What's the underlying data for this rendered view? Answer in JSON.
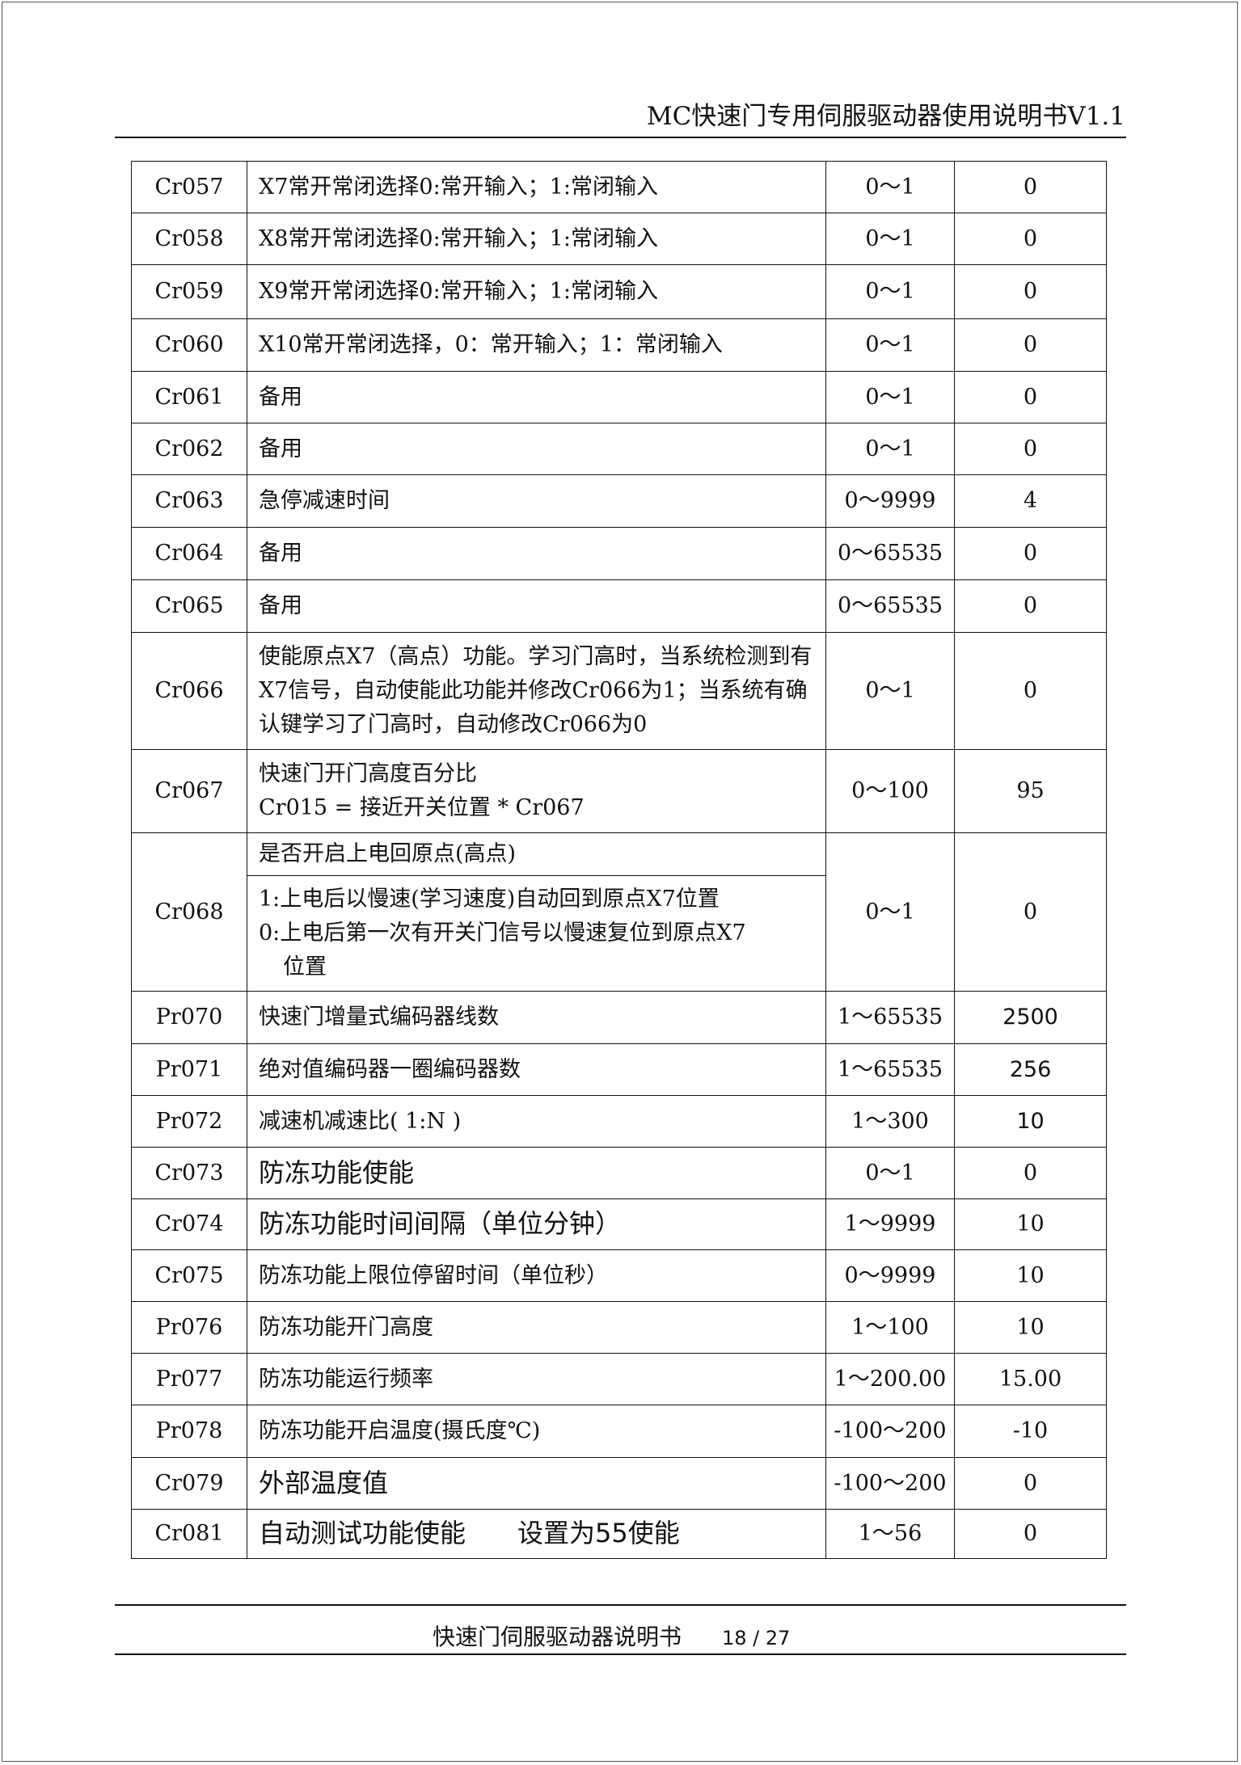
{
  "header": {
    "title": "MC快速门专用伺服驱动器使用说明书V1.1"
  },
  "rows": [
    {
      "code": "Cr057",
      "desc": "X7常开常闭选择0:常开输入；1:常闭输入",
      "range": "0～1",
      "default": "0"
    },
    {
      "code": "Cr058",
      "desc": "X8常开常闭选择0:常开输入；1:常闭输入",
      "range": "0～1",
      "default": "0"
    },
    {
      "code": "Cr059",
      "desc": "X9常开常闭选择0:常开输入；1:常闭输入",
      "range": "0～1",
      "default": "0"
    },
    {
      "code": "Cr060",
      "desc": "X10常开常闭选择，0：常开输入；1：常闭输入",
      "range": "0～1",
      "default": "0"
    },
    {
      "code": "Cr061",
      "desc": "备用",
      "range": "0～1",
      "default": "0"
    },
    {
      "code": "Cr062",
      "desc": "备用",
      "range": "0～1",
      "default": "0"
    },
    {
      "code": "Cr063",
      "desc": "急停减速时间",
      "range": "0～9999",
      "default": "4"
    },
    {
      "code": "Cr064",
      "desc": "备用",
      "range": "0～65535",
      "default": "0"
    },
    {
      "code": "Cr065",
      "desc": "备用",
      "range": "0～65535",
      "default": "0"
    },
    {
      "code": "Cr066",
      "desc": "使能原点X7（高点）功能。学习门高时，当系统检测到有X7信号，自动使能此功能并修改Cr066为1；当系统有确认键学习了门高时，自动修改Cr066为0",
      "range": "0～1",
      "default": "0"
    },
    {
      "code": "Cr067",
      "desc_lines": [
        "快速门开门高度百分比",
        "Cr015 = 接近开关位置 * Cr067"
      ],
      "range": "0～100",
      "default": "95"
    },
    {
      "code": "Cr068",
      "desc_title": "是否开启上电回原点(高点)",
      "desc_lines": [
        "1:上电后以慢速(学习速度)自动回到原点X7位置",
        "0:上电后第一次有开关门信号以慢速复位到原点X7",
        "位置"
      ],
      "range": "0～1",
      "default": "0"
    },
    {
      "code": "Pr070",
      "desc": "快速门增量式编码器线数",
      "range": "1～65535",
      "default": "2500"
    },
    {
      "code": "Pr071",
      "desc": "绝对值编码器一圈编码器数",
      "range": "1～65535",
      "default": "256"
    },
    {
      "code": "Pr072",
      "desc": "减速机减速比( 1:N )",
      "range": "1～300",
      "default": "10"
    },
    {
      "code": "Cr073",
      "desc": "防冻功能使能",
      "range": "0～1",
      "default": "0"
    },
    {
      "code": "Cr074",
      "desc": "防冻功能时间间隔（单位分钟）",
      "range": "1～9999",
      "default": "10"
    },
    {
      "code": "Cr075",
      "desc": "防冻功能上限位停留时间（单位秒）",
      "range": "0～9999",
      "default": "10"
    },
    {
      "code": "Pr076",
      "desc": "防冻功能开门高度",
      "range": "1～100",
      "default": "10"
    },
    {
      "code": "Pr077",
      "desc": "防冻功能运行频率",
      "range": "1～200.00",
      "default": "15.00"
    },
    {
      "code": "Pr078",
      "desc": "防冻功能开启温度(摄氏度℃)",
      "range": "-100～200",
      "default": "-10"
    },
    {
      "code": "Cr079",
      "desc": "外部温度值",
      "range": "-100～200",
      "default": "0"
    },
    {
      "code": "Cr081",
      "desc": "自动测试功能使能　　设置为55使能",
      "range": "1～56",
      "default": "0"
    }
  ],
  "footer": {
    "title": "快速门伺服驱动器说明书",
    "page": "18 / 27"
  }
}
